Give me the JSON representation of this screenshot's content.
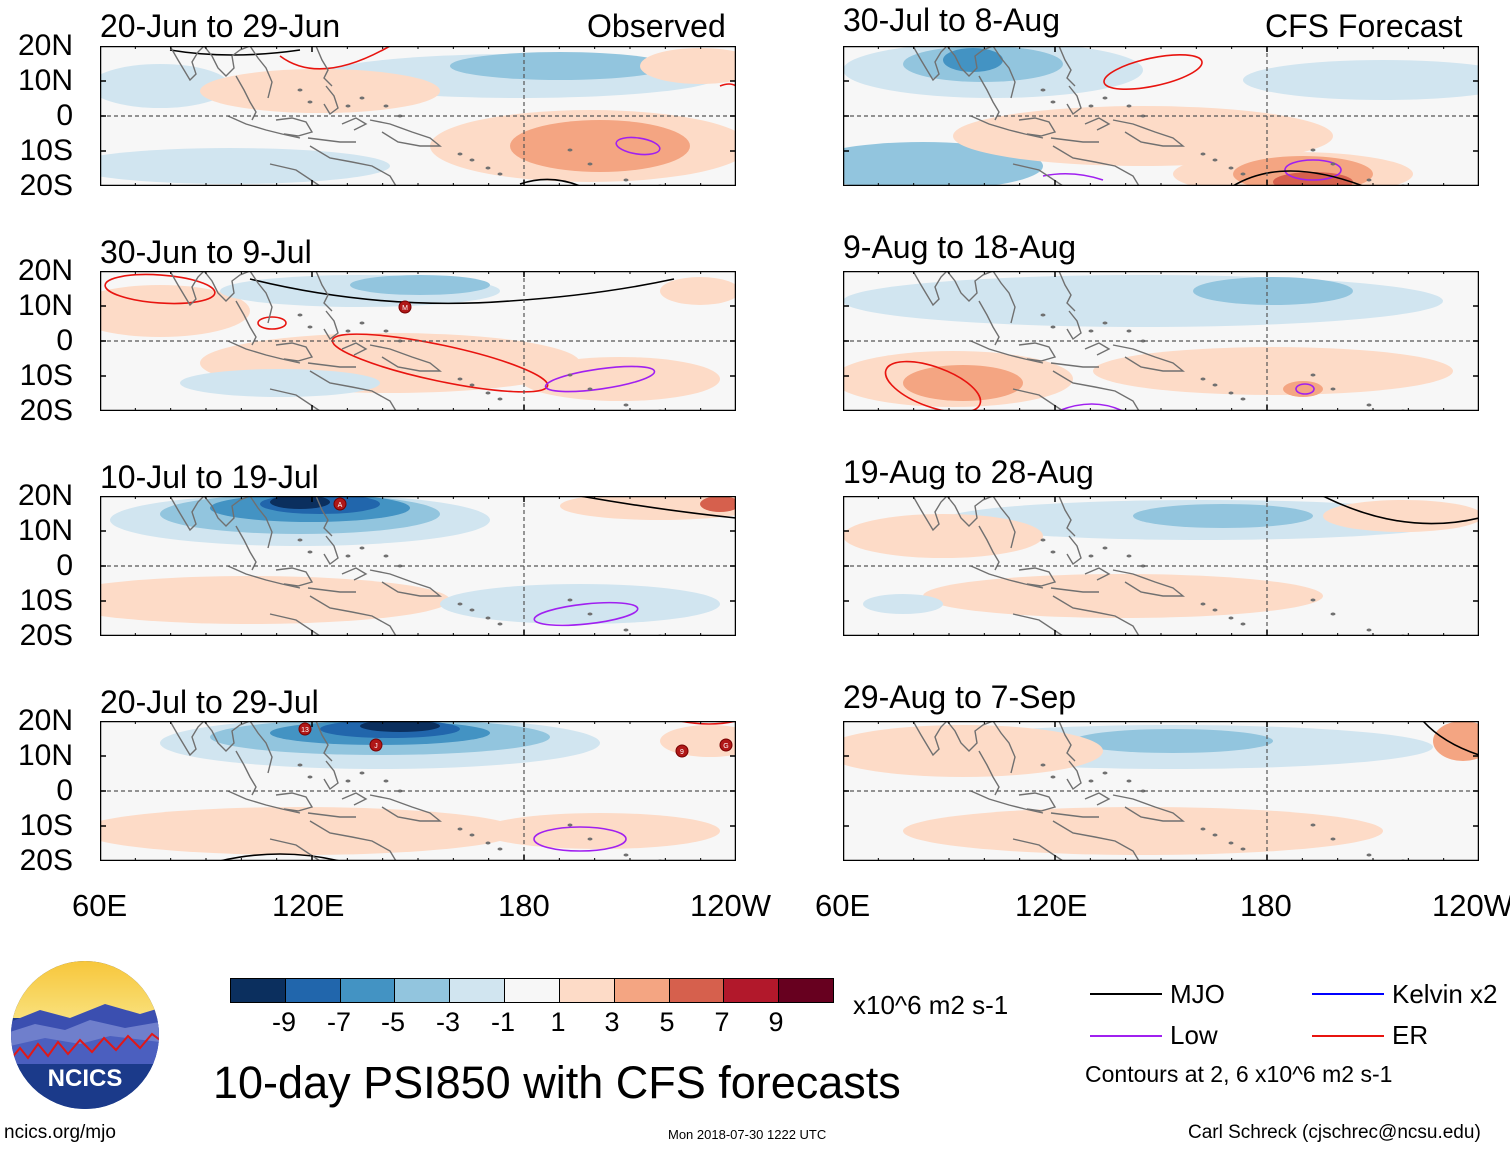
{
  "title": "10-day PSI850 with CFS forecasts",
  "headers": {
    "observed": "Observed",
    "forecast": "CFS Forecast"
  },
  "lat_labels": [
    "20N",
    "10N",
    "0",
    "10S",
    "20S"
  ],
  "lon_labels": [
    "60E",
    "120E",
    "180",
    "120W"
  ],
  "panels_observed": [
    {
      "label": "20-Jun to 29-Jun"
    },
    {
      "label": "30-Jun to 9-Jul"
    },
    {
      "label": "10-Jul to 19-Jul"
    },
    {
      "label": "20-Jul to 29-Jul"
    }
  ],
  "panels_forecast": [
    {
      "label": "30-Jul to 8-Aug"
    },
    {
      "label": "9-Aug to 18-Aug"
    },
    {
      "label": "19-Aug to 28-Aug"
    },
    {
      "label": "29-Aug to 7-Sep"
    }
  ],
  "colorbar": {
    "labels": [
      "-9",
      "-7",
      "-5",
      "-3",
      "-1",
      "1",
      "3",
      "5",
      "7",
      "9"
    ],
    "units": "x10^6 m2 s-1",
    "colors": [
      "#0b2f5e",
      "#2166ac",
      "#4393c3",
      "#92c5de",
      "#d1e5f0",
      "#f7f7f7",
      "#fddbc7",
      "#f4a582",
      "#d6604d",
      "#b2182b",
      "#67001f"
    ]
  },
  "legend": {
    "items": [
      {
        "label": "MJO",
        "color": "#000000"
      },
      {
        "label": "Kelvin x2",
        "color": "#0000ff"
      },
      {
        "label": "Low",
        "color": "#a020f0"
      },
      {
        "label": "ER",
        "color": "#e8140f"
      }
    ],
    "note": "Contours at 2, 6 x10^6 m2 s-1"
  },
  "logo_text": "NCICS",
  "footer": {
    "left": "ncics.org/mjo",
    "center": "Mon 2018-07-30 1222 UTC",
    "right": "Carl Schreck (cjschrec@ncsu.edu)"
  },
  "map_data": {
    "field": "10-day mean streamfunction anomaly at 850 hPa",
    "domain": {
      "lon_range": [
        "60E",
        "120W"
      ],
      "lat_range": [
        "20S",
        "20N"
      ]
    },
    "storm_markers": [
      "M",
      "A",
      "13",
      "J",
      "9",
      "G"
    ]
  }
}
